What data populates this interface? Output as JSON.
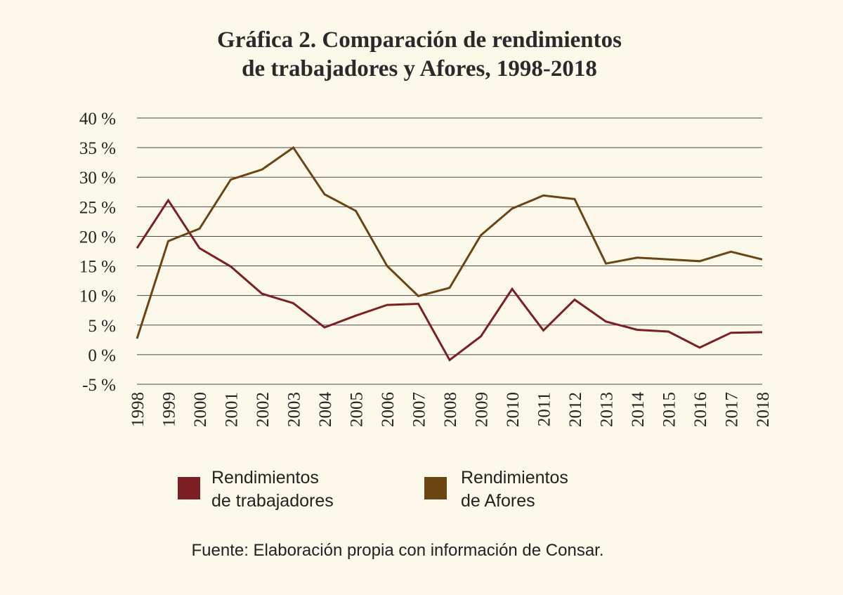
{
  "chart_data": {
    "type": "line",
    "title_lines": [
      "Gráfica 2. Comparación de rendimientos",
      "de trabajadores y Afores, 1998-2018"
    ],
    "x": [
      "1998",
      "1999",
      "2000",
      "2001",
      "2002",
      "2003",
      "2004",
      "2005",
      "2006",
      "2007",
      "2008",
      "2009",
      "2010",
      "2011",
      "2012",
      "2013",
      "2014",
      "2015",
      "2016",
      "2017",
      "2018"
    ],
    "ylim": [
      -5,
      40
    ],
    "yticks": [
      -5,
      0,
      5,
      10,
      15,
      20,
      25,
      30,
      35,
      40
    ],
    "ytick_labels": [
      "-5 %",
      "0 %",
      "5 %",
      "10 %",
      "15 %",
      "20 %",
      "25 %",
      "30 %",
      "35 %",
      "40 %"
    ],
    "grid": true,
    "series": [
      {
        "name": "Rendimientos de trabajadores",
        "legend_lines": [
          "Rendimientos",
          "de trabajadores"
        ],
        "color": "#7a1f22",
        "values": [
          18,
          26.1,
          18,
          14.9,
          10.3,
          8.7,
          4.6,
          6.6,
          8.4,
          8.6,
          -0.9,
          3.1,
          11.1,
          4.1,
          9.3,
          5.6,
          4.2,
          3.9,
          1.2,
          3.7,
          3.8
        ]
      },
      {
        "name": "Rendimientos de Afores",
        "legend_lines": [
          "Rendimientos",
          "de Afores"
        ],
        "color": "#6b4412",
        "values": [
          2.7,
          19.2,
          21.3,
          29.6,
          31.3,
          35,
          27.1,
          24.3,
          15,
          9.9,
          11.3,
          20.2,
          24.7,
          26.9,
          26.3,
          15.4,
          16.4,
          16.1,
          15.8,
          17.4,
          16.1
        ]
      }
    ],
    "source": "Fuente: Elaboración propia con información de Consar."
  },
  "colors": {
    "background": "#fcf8ea",
    "grid": "#4a4a4a"
  }
}
